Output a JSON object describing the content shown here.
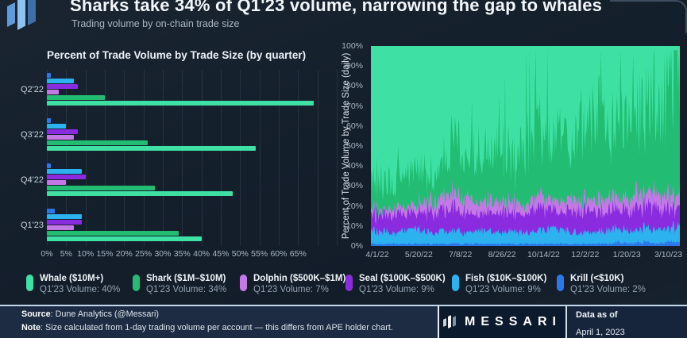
{
  "header": {
    "title": "Sharks take 34% of Q1'23 volume, narrowing the gap to whales",
    "subtitle": "Trading volume by on-chain trade size"
  },
  "chart_data": [
    {
      "id": "trade-volume-by-quarter",
      "type": "bar",
      "orientation": "horizontal",
      "title": "Percent of Trade Volume by Trade Size (by quarter)",
      "categories": [
        "Q2'22",
        "Q3'22",
        "Q4'22",
        "Q1'23"
      ],
      "xlim": [
        0,
        75
      ],
      "x_ticks": [
        "0%",
        "5%",
        "10%",
        "15%",
        "20%",
        "25%",
        "30%",
        "35%",
        "40%",
        "45%",
        "50%",
        "55%",
        "60%",
        "65%"
      ],
      "grid": true,
      "series": [
        {
          "key": "krill",
          "name": "Krill (<$10K)",
          "color": "#2D78E8",
          "values": [
            1,
            1,
            1,
            2
          ]
        },
        {
          "key": "fish",
          "name": "Fish ($10K–$100K)",
          "color": "#2CB2EE",
          "values": [
            7,
            5,
            9,
            9
          ]
        },
        {
          "key": "seal",
          "name": "Seal ($100K–$500K)",
          "color": "#8A2BE0",
          "values": [
            8,
            8,
            10,
            9
          ]
        },
        {
          "key": "dolphin",
          "name": "Dolphin ($500K–$1M)",
          "color": "#C478E6",
          "values": [
            3,
            7,
            5,
            7
          ]
        },
        {
          "key": "shark",
          "name": "Shark ($1M–$10M)",
          "color": "#22BD72",
          "values": [
            15,
            26,
            28,
            34
          ]
        },
        {
          "key": "whale",
          "name": "Whale ($10M+)",
          "color": "#3EE0A4",
          "values": [
            69,
            54,
            48,
            40
          ]
        }
      ]
    },
    {
      "id": "daily-trade-size-share",
      "type": "area",
      "stacked": true,
      "normalized": true,
      "ylabel": "Percent of Trade Volume by Trade Size (daily)",
      "ylim": [
        0,
        100
      ],
      "y_ticks": [
        "0%",
        "10%",
        "20%",
        "30%",
        "40%",
        "50%",
        "60%",
        "70%",
        "80%",
        "90%",
        "100%"
      ],
      "x_ticks": [
        "4/1/22",
        "5/20/22",
        "7/8/22",
        "8/26/22",
        "10/14/22",
        "12/2/22",
        "1/20/23",
        "3/10/23"
      ],
      "x_tick_interval_days": 49,
      "x_range_days": 365,
      "series": [
        {
          "key": "krill",
          "name": "Krill (<$10K)",
          "color": "#2D78E8",
          "jitter": 0.5,
          "values": [
            1,
            1,
            1,
            1,
            1,
            1,
            1,
            1,
            1,
            1,
            1,
            1,
            1,
            1,
            1,
            1,
            1,
            1,
            1,
            1,
            1,
            2,
            1,
            2,
            1,
            2,
            2
          ]
        },
        {
          "key": "fish",
          "name": "Fish ($10K–$100K)",
          "color": "#2CB2EE",
          "jitter": 0.35,
          "values": [
            6,
            6,
            5,
            6,
            7,
            5,
            6,
            6,
            5,
            6,
            6,
            5,
            6,
            5,
            6,
            7,
            6,
            6,
            5,
            6,
            6,
            7,
            6,
            7,
            6,
            7,
            8
          ]
        },
        {
          "key": "seal",
          "name": "Seal ($100K–$500K)",
          "color": "#8A2BE0",
          "jitter": 0.4,
          "values": [
            8,
            7,
            9,
            7,
            8,
            10,
            9,
            11,
            9,
            8,
            9,
            10,
            8,
            9,
            10,
            9,
            8,
            10,
            11,
            9,
            10,
            9,
            10,
            9,
            10,
            9,
            9
          ]
        },
        {
          "key": "dolphin",
          "name": "Dolphin ($500K–$1M)",
          "color": "#C478E6",
          "jitter": 0.5,
          "values": [
            3,
            2,
            3,
            3,
            4,
            5,
            6,
            7,
            6,
            7,
            6,
            5,
            5,
            4,
            5,
            5,
            5,
            6,
            5,
            6,
            6,
            6,
            7,
            6,
            7,
            7,
            6
          ]
        },
        {
          "key": "shark",
          "name": "Shark ($1M–$10M)",
          "color": "#22BD72",
          "jitter": 0.6,
          "spiky": true,
          "values": [
            12,
            14,
            11,
            13,
            15,
            12,
            16,
            22,
            18,
            24,
            20,
            24,
            19,
            26,
            32,
            26,
            30,
            27,
            33,
            36,
            30,
            34,
            33,
            38,
            42,
            46,
            55
          ]
        },
        {
          "key": "whale",
          "name": "Whale ($10M+)",
          "color": "#3EE0A4",
          "fill_remainder": true
        }
      ]
    }
  ],
  "legend": {
    "items": [
      {
        "key": "whale",
        "label": "Whale ($10M+)",
        "sublabel": "Q1'23 Volume: 40%",
        "color": "#3EE0A4"
      },
      {
        "key": "shark",
        "label": "Shark ($1M–$10M)",
        "sublabel": "Q1'23 Volume: 34%",
        "color": "#22BD72"
      },
      {
        "key": "dolphin",
        "label": "Dolphin ($500K–$1M)",
        "sublabel": "Q1'23 Volume: 7%",
        "color": "#C478E6"
      },
      {
        "key": "seal",
        "label": "Seal ($100K–$500K)",
        "sublabel": "Q1'23 Volume: 9%",
        "color": "#8A2BE0"
      },
      {
        "key": "fish",
        "label": "Fish ($10K–$100K)",
        "sublabel": "Q1'23 Volume: 9%",
        "color": "#2CB2EE"
      },
      {
        "key": "krill",
        "label": "Krill (<$10K)",
        "sublabel": "Q1'23 Volume: 2%",
        "color": "#2D78E8"
      }
    ]
  },
  "footer": {
    "source_label": "Source",
    "source_value": ": Dune Analytics (@Messari)",
    "note_label": "Note",
    "note_value": ": Size calculated from 1-day trading volume per account — this differs from APE holder chart.",
    "brand": "MESSARI",
    "data_as_of_label": "Data as of",
    "data_as_of_value": "April 1, 2023"
  },
  "colors": {
    "background": "#141E2B",
    "footer_left_bg": "#1D2C42",
    "footer_brand_bg": "#0C1A2E",
    "footer_data_bg": "#16253C",
    "divider": "#C4D9EE",
    "text_primary": "#F0F4F8",
    "text_secondary": "#9DAABA"
  }
}
